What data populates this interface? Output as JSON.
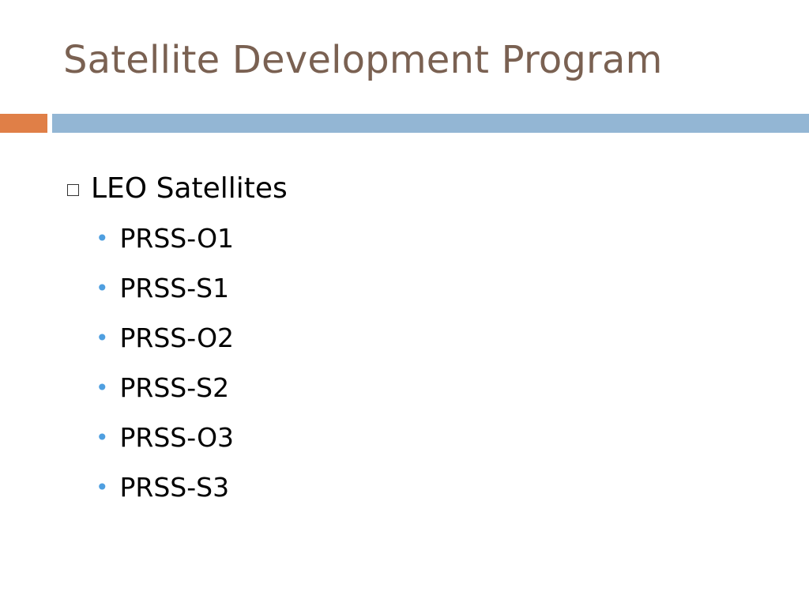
{
  "slide": {
    "title": "Satellite Development Program",
    "bullets": [
      {
        "label": "LEO Satellites",
        "children": [
          "PRSS-O1",
          "PRSS-S1",
          "PRSS-O2",
          "PRSS-S2",
          "PRSS-O3",
          "PRSS-S3"
        ]
      }
    ]
  },
  "colors": {
    "title": "#7a6152",
    "accent_orange": "#e07f47",
    "accent_blue": "#93b6d4",
    "sub_bullet": "#4f9fe0"
  },
  "icons": {
    "level1_bullet": "square-outline-icon",
    "level2_bullet": "dot-icon"
  }
}
